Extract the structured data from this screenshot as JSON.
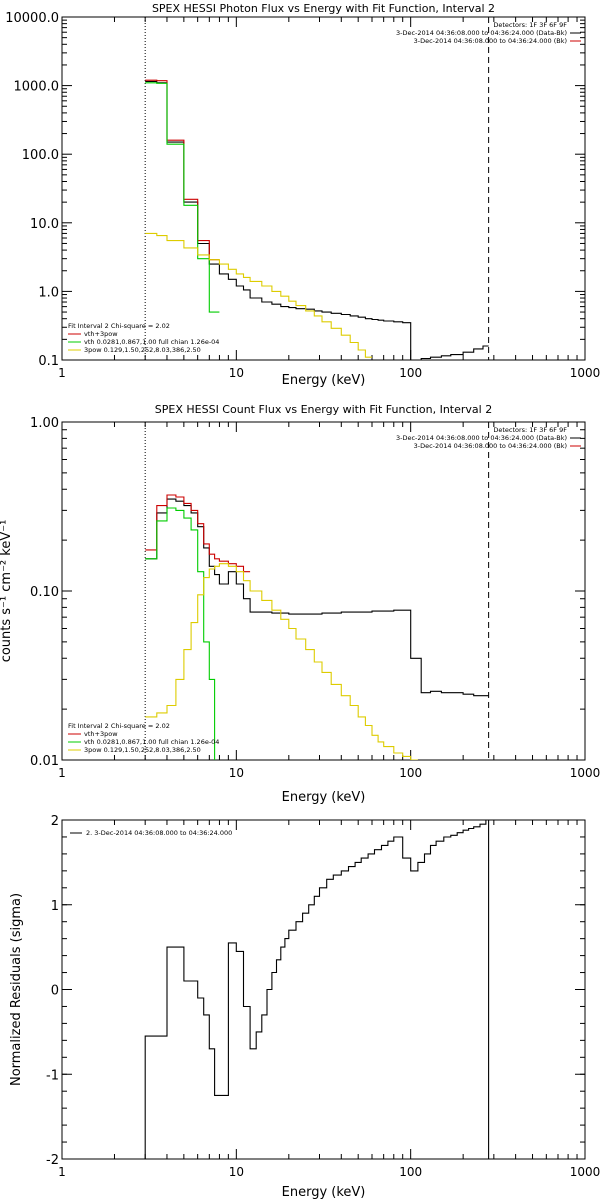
{
  "chart_data": [
    {
      "type": "line",
      "title": "SPEX HESSI Photon Flux vs Energy with Fit Function, Interval 2",
      "xlabel": "Energy (keV)",
      "ylabel": "",
      "xscale": "log",
      "yscale": "log",
      "xlim": [
        1,
        1000
      ],
      "ylim": [
        0.1,
        10000
      ],
      "x_ticks": [
        1,
        10,
        100,
        1000
      ],
      "x_tick_labels": [
        "1",
        "10",
        "100",
        "1000"
      ],
      "y_ticks": [
        0.1,
        1,
        10,
        100,
        1000,
        10000
      ],
      "y_tick_labels": [
        "0.1",
        "1.0",
        "10.0",
        "100.0",
        "1000.0",
        "10000.0"
      ],
      "legend_top": {
        "placement": "top-right",
        "lines": [
          {
            "text": "Detectors: 1F 3F 6F 9F",
            "color": ""
          },
          {
            "text": "3-Dec-2014 04:36:08.000 to 04:36:24.000 (Data-Bk)",
            "color": "#000000"
          },
          {
            "text": "3-Dec-2014 04:36:08.000 to 04:36:24.000 (Bk)",
            "color": "#cc0000"
          }
        ]
      },
      "legend_fit": {
        "placement": "bottom-left",
        "lines": [
          {
            "text": "Fit Interval 2   Chi-square = 2.02",
            "color": ""
          },
          {
            "text": "vth+3pow",
            "color": "#cc0000"
          },
          {
            "text": "vth 0.0281,0.867,1.00  full chian 1.26e-04",
            "color": "#00cc00"
          },
          {
            "text": "3pow 0.129,1.50,252,8.03,386,2.50",
            "color": "#ddcc00"
          }
        ]
      },
      "vlines": [
        {
          "x": 3,
          "style": "dotted"
        },
        {
          "x": 280,
          "style": "dashed"
        }
      ],
      "series": [
        {
          "name": "",
          "color": "#000000",
          "kind": "step",
          "edges": [
            3,
            3.5,
            4,
            5,
            6,
            7,
            8,
            9,
            10,
            11,
            12,
            14,
            16,
            18,
            20,
            22,
            25,
            28,
            31,
            35,
            40,
            45,
            50,
            55,
            60,
            65,
            70,
            80,
            90,
            100,
            115,
            130,
            150,
            170,
            200,
            230,
            260,
            280
          ],
          "values": [
            1150,
            1100,
            150,
            20,
            5,
            2.5,
            1.8,
            1.5,
            1.2,
            1.05,
            0.8,
            0.7,
            0.65,
            0.6,
            0.58,
            0.56,
            0.55,
            0.52,
            0.5,
            0.48,
            0.46,
            0.44,
            0.42,
            0.4,
            0.39,
            0.38,
            0.37,
            0.36,
            0.35,
            0.1,
            0.105,
            0.11,
            0.115,
            0.12,
            0.13,
            0.145,
            0.16
          ]
        },
        {
          "name": "",
          "color": "#cc0000",
          "kind": "step",
          "edges": [
            3,
            3.5,
            4,
            5,
            6,
            7,
            8
          ],
          "values": [
            1200,
            1180,
            160,
            22,
            5.5,
            2.9
          ]
        },
        {
          "name": "",
          "color": "#00cc00",
          "kind": "step",
          "edges": [
            3,
            3.5,
            4,
            5,
            6,
            7,
            8
          ],
          "values": [
            1100,
            1080,
            140,
            18,
            3,
            0.5
          ]
        },
        {
          "name": "",
          "color": "#ddcc00",
          "kind": "step",
          "edges": [
            3,
            3.5,
            4,
            5,
            6,
            7,
            8,
            9,
            10,
            11,
            12,
            14,
            16,
            18,
            20,
            22,
            25,
            28,
            31,
            35,
            40,
            45,
            50,
            55,
            60
          ],
          "values": [
            7,
            6.5,
            5.5,
            4.3,
            3.4,
            2.9,
            2.5,
            2.1,
            1.8,
            1.6,
            1.4,
            1.2,
            1.0,
            0.85,
            0.72,
            0.62,
            0.52,
            0.44,
            0.36,
            0.29,
            0.23,
            0.18,
            0.14,
            0.11
          ]
        }
      ]
    },
    {
      "type": "line",
      "title": "SPEX HESSI Count Flux vs Energy with Fit Function, Interval 2",
      "xlabel": "Energy (keV)",
      "ylabel": "counts s⁻¹ cm⁻² keV⁻¹",
      "xscale": "log",
      "yscale": "log",
      "xlim": [
        1,
        1000
      ],
      "ylim": [
        0.01,
        1
      ],
      "x_ticks": [
        1,
        10,
        100,
        1000
      ],
      "x_tick_labels": [
        "1",
        "10",
        "100",
        "1000"
      ],
      "y_ticks": [
        0.01,
        0.1,
        1
      ],
      "y_tick_labels": [
        "0.01",
        "0.10",
        "1.00"
      ],
      "legend_top": {
        "placement": "top-right",
        "lines": [
          {
            "text": "Detectors: 1F 3F 6F 9F",
            "color": ""
          },
          {
            "text": "3-Dec-2014 04:36:08.000 to 04:36:24.000 (Data-Bk)",
            "color": "#000000"
          },
          {
            "text": "3-Dec-2014 04:36:08.000 to 04:36:24.000 (Bk)",
            "color": "#cc0000"
          }
        ]
      },
      "legend_fit": {
        "placement": "bottom-left",
        "lines": [
          {
            "text": "Fit Interval 2   Chi-square = 2.02",
            "color": ""
          },
          {
            "text": "vth+3pow",
            "color": "#cc0000"
          },
          {
            "text": "vth 0.0281,0.867,1.00  full chian 1.26e-04",
            "color": "#00cc00"
          },
          {
            "text": "3pow 0.129,1.50,252,8.03,386,2.50",
            "color": "#ddcc00"
          }
        ]
      },
      "vlines": [
        {
          "x": 3,
          "style": "dotted"
        },
        {
          "x": 280,
          "style": "dashed"
        }
      ],
      "series": [
        {
          "name": "",
          "color": "#000000",
          "kind": "step",
          "edges": [
            3,
            3.5,
            4,
            4.5,
            5,
            5.5,
            6,
            6.5,
            7,
            7.5,
            8,
            9,
            10,
            11,
            12,
            14,
            16,
            18,
            20,
            22,
            25,
            28,
            31,
            35,
            40,
            50,
            60,
            70,
            80,
            90,
            100,
            115,
            130,
            150,
            170,
            200,
            230,
            260,
            280
          ],
          "values": [
            0.155,
            0.29,
            0.35,
            0.34,
            0.32,
            0.29,
            0.24,
            0.18,
            0.14,
            0.125,
            0.11,
            0.13,
            0.11,
            0.09,
            0.075,
            0.075,
            0.074,
            0.074,
            0.073,
            0.073,
            0.073,
            0.073,
            0.074,
            0.074,
            0.075,
            0.075,
            0.076,
            0.076,
            0.077,
            0.077,
            0.04,
            0.025,
            0.0255,
            0.025,
            0.025,
            0.0245,
            0.024,
            0.024
          ]
        },
        {
          "name": "",
          "color": "#cc0000",
          "kind": "step",
          "edges": [
            3,
            3.5,
            4,
            4.5,
            5,
            5.5,
            6,
            6.5,
            7,
            7.5,
            8,
            9,
            10,
            11,
            12
          ],
          "values": [
            0.175,
            0.32,
            0.37,
            0.36,
            0.33,
            0.3,
            0.25,
            0.19,
            0.165,
            0.155,
            0.15,
            0.145,
            0.14,
            0.13
          ]
        },
        {
          "name": "",
          "color": "#00cc00",
          "kind": "step",
          "edges": [
            3,
            3.5,
            4,
            4.5,
            5,
            5.5,
            6,
            6.5,
            7,
            7.5,
            8
          ],
          "values": [
            0.155,
            0.26,
            0.31,
            0.3,
            0.27,
            0.23,
            0.13,
            0.05,
            0.03,
            0.0085
          ]
        },
        {
          "name": "",
          "color": "#ddcc00",
          "kind": "step",
          "edges": [
            3,
            3.5,
            4,
            4.5,
            5,
            5.5,
            6,
            6.5,
            7,
            7.5,
            8,
            9,
            10,
            11,
            12,
            14,
            16,
            18,
            20,
            22,
            25,
            28,
            31,
            35,
            40,
            45,
            50,
            55,
            60,
            65,
            70,
            80,
            90,
            100,
            110
          ],
          "values": [
            0.018,
            0.019,
            0.021,
            0.03,
            0.045,
            0.065,
            0.095,
            0.12,
            0.135,
            0.14,
            0.145,
            0.14,
            0.13,
            0.115,
            0.1,
            0.088,
            0.077,
            0.068,
            0.06,
            0.052,
            0.045,
            0.038,
            0.033,
            0.028,
            0.024,
            0.021,
            0.018,
            0.016,
            0.014,
            0.0128,
            0.012,
            0.011,
            0.0105,
            0.01
          ]
        }
      ]
    },
    {
      "type": "line",
      "title": "",
      "xlabel": "Energy (keV)",
      "ylabel": "Normalized Residuals (sigma)",
      "xscale": "log",
      "yscale": "linear",
      "xlim": [
        1,
        1000
      ],
      "ylim": [
        -2,
        2
      ],
      "x_ticks": [
        1,
        10,
        100,
        1000
      ],
      "x_tick_labels": [
        "1",
        "10",
        "100",
        "1000"
      ],
      "y_ticks": [
        -2,
        -1,
        0,
        1,
        2
      ],
      "y_tick_labels": [
        "-2",
        "-1",
        "0",
        "1",
        "2"
      ],
      "legend_top": {
        "placement": "top-left",
        "lines": [
          {
            "text": "2.  3-Dec-2014 04:36:08.000 to 04:36:24.000",
            "color": "#000000"
          }
        ]
      },
      "series": [
        {
          "name": "",
          "color": "#000000",
          "kind": "step",
          "drop_to_ymin": true,
          "edges": [
            3,
            4,
            4.5,
            5,
            5.5,
            6,
            6.5,
            7,
            7.5,
            8,
            9,
            10,
            11,
            12,
            13,
            14,
            15,
            16,
            17,
            18,
            19,
            20,
            22,
            24,
            26,
            28,
            30,
            33,
            36,
            40,
            44,
            48,
            52,
            57,
            62,
            68,
            74,
            80,
            90,
            100,
            110,
            120,
            130,
            140,
            155,
            170,
            185,
            200,
            215,
            230,
            250,
            270,
            280
          ],
          "values": [
            -0.55,
            0.5,
            0.5,
            0.1,
            0.1,
            -0.1,
            -0.3,
            -0.7,
            -1.25,
            -1.25,
            0.55,
            0.45,
            -0.2,
            -0.7,
            -0.5,
            -0.3,
            0.0,
            0.2,
            0.35,
            0.5,
            0.6,
            0.7,
            0.8,
            0.9,
            1.0,
            1.1,
            1.2,
            1.3,
            1.35,
            1.4,
            1.45,
            1.5,
            1.55,
            1.6,
            1.65,
            1.7,
            1.75,
            1.8,
            1.55,
            1.4,
            1.5,
            1.6,
            1.7,
            1.75,
            1.8,
            1.82,
            1.85,
            1.88,
            1.9,
            1.92,
            1.95,
            2.0
          ]
        }
      ]
    }
  ]
}
